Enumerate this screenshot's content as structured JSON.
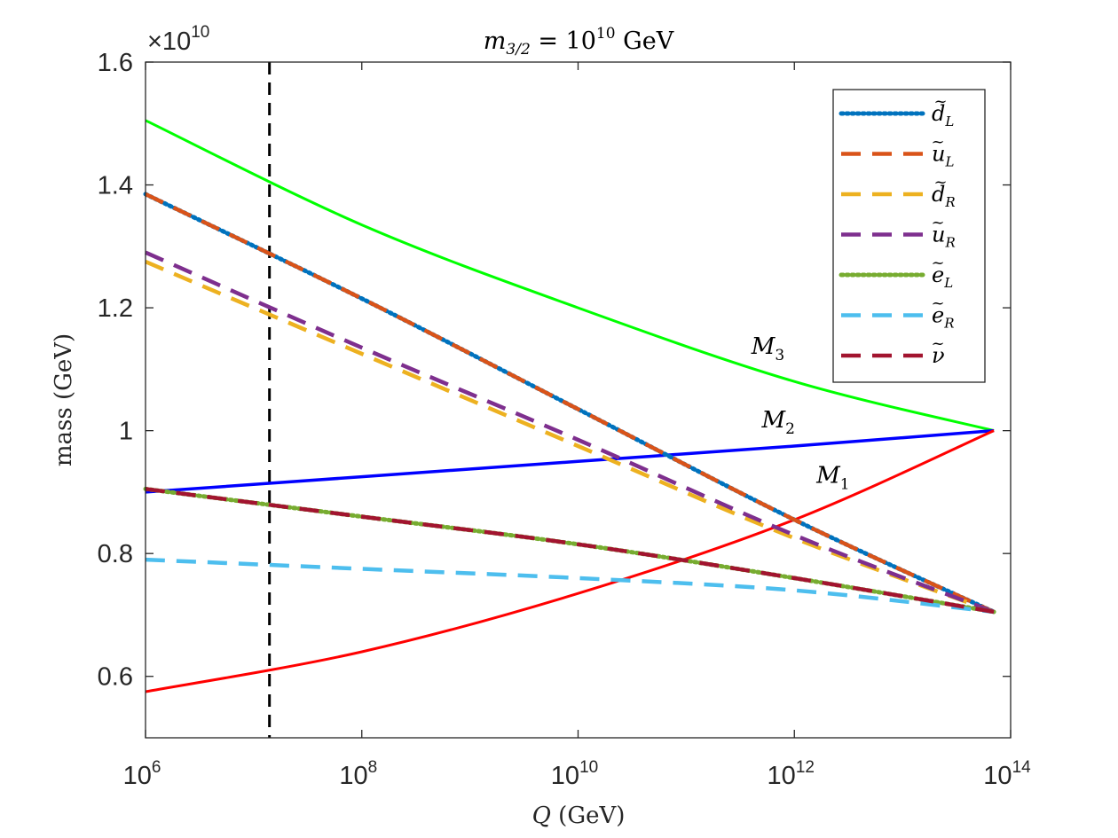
{
  "chart_data": {
    "type": "line",
    "title": "m_{3/2} = 10^{10} GeV",
    "title_parts": {
      "m": "m",
      "sub": "3/2",
      "eq": " = 10",
      "sup": "10",
      "unit": " GeV"
    },
    "xlabel": "Q (GeV)",
    "xlabel_parts": {
      "var": "Q",
      "unit": " (GeV)"
    },
    "ylabel": "mass (GeV)",
    "x_scale": "log",
    "xlim": [
      1000000.0,
      100000000000000.0
    ],
    "ylim": [
      0.5,
      1.6
    ],
    "y_exponent_label": {
      "prefix": "×10",
      "sup": "10"
    },
    "x_ticks": [
      {
        "value": 1000000.0,
        "base": "10",
        "exp": "6"
      },
      {
        "value": 100000000.0,
        "base": "10",
        "exp": "8"
      },
      {
        "value": 10000000000.0,
        "base": "10",
        "exp": "10"
      },
      {
        "value": 1000000000000.0,
        "base": "10",
        "exp": "12"
      },
      {
        "value": 100000000000000.0,
        "base": "10",
        "exp": "14"
      }
    ],
    "y_ticks": [
      {
        "value": 0.6,
        "label": "0.6"
      },
      {
        "value": 0.8,
        "label": "0.8"
      },
      {
        "value": 1.0,
        "label": "1"
      },
      {
        "value": 1.2,
        "label": "1.2"
      },
      {
        "value": 1.4,
        "label": "1.4"
      },
      {
        "value": 1.6,
        "label": "1.6"
      }
    ],
    "grid": false,
    "legend_position": "top-right",
    "vline": {
      "x": 14000000.0,
      "color": "#000000",
      "style": "dashed"
    },
    "series": [
      {
        "name": "M_3",
        "legend": false,
        "color": "#00ff00",
        "style": "solid",
        "width": 3,
        "x": [
          1000000.0,
          100000000.0,
          10000000000.0,
          1000000000000.0,
          70000000000000.0
        ],
        "y": [
          1.505,
          1.335,
          1.2,
          1.08,
          1.0
        ]
      },
      {
        "name": "M_2",
        "legend": false,
        "color": "#0000ff",
        "style": "solid",
        "width": 3.5,
        "x": [
          1000000.0,
          100000000.0,
          10000000000.0,
          1000000000000.0,
          70000000000000.0
        ],
        "y": [
          0.9,
          0.925,
          0.95,
          0.975,
          1.0
        ]
      },
      {
        "name": "M_1",
        "legend": false,
        "color": "#ff0000",
        "style": "solid",
        "width": 3,
        "x": [
          1000000.0,
          100000000.0,
          10000000000.0,
          1000000000000.0,
          70000000000000.0
        ],
        "y": [
          0.575,
          0.64,
          0.735,
          0.855,
          1.0
        ]
      },
      {
        "name": "d_L",
        "label_base": "d",
        "label_sub": "L",
        "legend": true,
        "color": "#0072bd",
        "style": "dotted",
        "width": 5,
        "x": [
          1000000.0,
          100000000.0,
          10000000000.0,
          1000000000000.0,
          70000000000000.0
        ],
        "y": [
          1.385,
          1.215,
          1.035,
          0.855,
          0.705
        ]
      },
      {
        "name": "u_L",
        "label_base": "u",
        "label_sub": "L",
        "legend": true,
        "color": "#d95319",
        "style": "dashed",
        "width": 4.5,
        "x": [
          1000000.0,
          100000000.0,
          10000000000.0,
          1000000000000.0,
          70000000000000.0
        ],
        "y": [
          1.385,
          1.215,
          1.035,
          0.855,
          0.705
        ]
      },
      {
        "name": "d_R",
        "label_base": "d",
        "label_sub": "R",
        "legend": true,
        "color": "#edb120",
        "style": "dashed",
        "width": 4.5,
        "x": [
          1000000.0,
          100000000.0,
          10000000000.0,
          1000000000000.0,
          70000000000000.0
        ],
        "y": [
          1.275,
          1.125,
          0.975,
          0.825,
          0.705
        ]
      },
      {
        "name": "u_R",
        "label_base": "u",
        "label_sub": "R",
        "legend": true,
        "color": "#7e2f8e",
        "style": "dashed",
        "width": 4.5,
        "x": [
          1000000.0,
          100000000.0,
          10000000000.0,
          1000000000000.0,
          70000000000000.0
        ],
        "y": [
          1.29,
          1.135,
          0.985,
          0.83,
          0.705
        ]
      },
      {
        "name": "e_L",
        "label_base": "e",
        "label_sub": "L",
        "legend": true,
        "color": "#77ac30",
        "style": "dotted",
        "width": 5,
        "x": [
          1000000.0,
          100000000.0,
          10000000000.0,
          1000000000000.0,
          70000000000000.0
        ],
        "y": [
          0.905,
          0.86,
          0.815,
          0.76,
          0.705
        ]
      },
      {
        "name": "e_R",
        "label_base": "e",
        "label_sub": "R",
        "legend": true,
        "color": "#4dbeee",
        "style": "dashed",
        "width": 4.5,
        "x": [
          1000000.0,
          100000000.0,
          10000000000.0,
          1000000000000.0,
          70000000000000.0
        ],
        "y": [
          0.79,
          0.775,
          0.76,
          0.74,
          0.705
        ]
      },
      {
        "name": "nu",
        "label_base": "ν",
        "label_sub": "",
        "legend": true,
        "color": "#a2142f",
        "style": "dashed",
        "width": 4.5,
        "x": [
          1000000.0,
          100000000.0,
          10000000000.0,
          1000000000000.0,
          70000000000000.0
        ],
        "y": [
          0.905,
          0.86,
          0.815,
          0.76,
          0.705
        ]
      }
    ],
    "annotations": [
      {
        "base": "M",
        "sub": "3",
        "x": 400000000000.0,
        "y": 1.125
      },
      {
        "base": "M",
        "sub": "2",
        "x": 500000000000.0,
        "y": 1.005
      },
      {
        "base": "M",
        "sub": "1",
        "x": 1600000000000.0,
        "y": 0.915
      }
    ]
  }
}
